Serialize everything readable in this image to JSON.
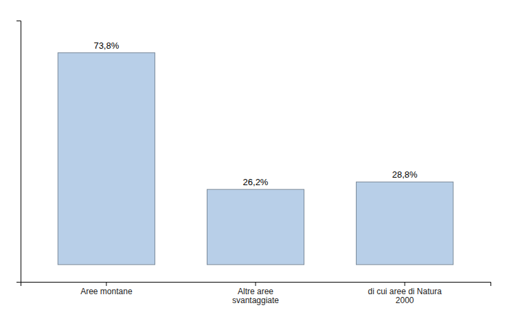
{
  "chart_data": {
    "type": "bar",
    "categories": [
      "Aree montane",
      "Altre aree\nsvantaggiate",
      "di cui aree di Natura\n2000"
    ],
    "values": [
      73.8,
      26.2,
      28.8
    ],
    "value_labels": [
      "73,8%",
      "26,2%",
      "28,8%"
    ],
    "data_labels": true,
    "color": "#b8cfe8",
    "ylim": [
      -6,
      85
    ],
    "tick_labels": "x"
  }
}
